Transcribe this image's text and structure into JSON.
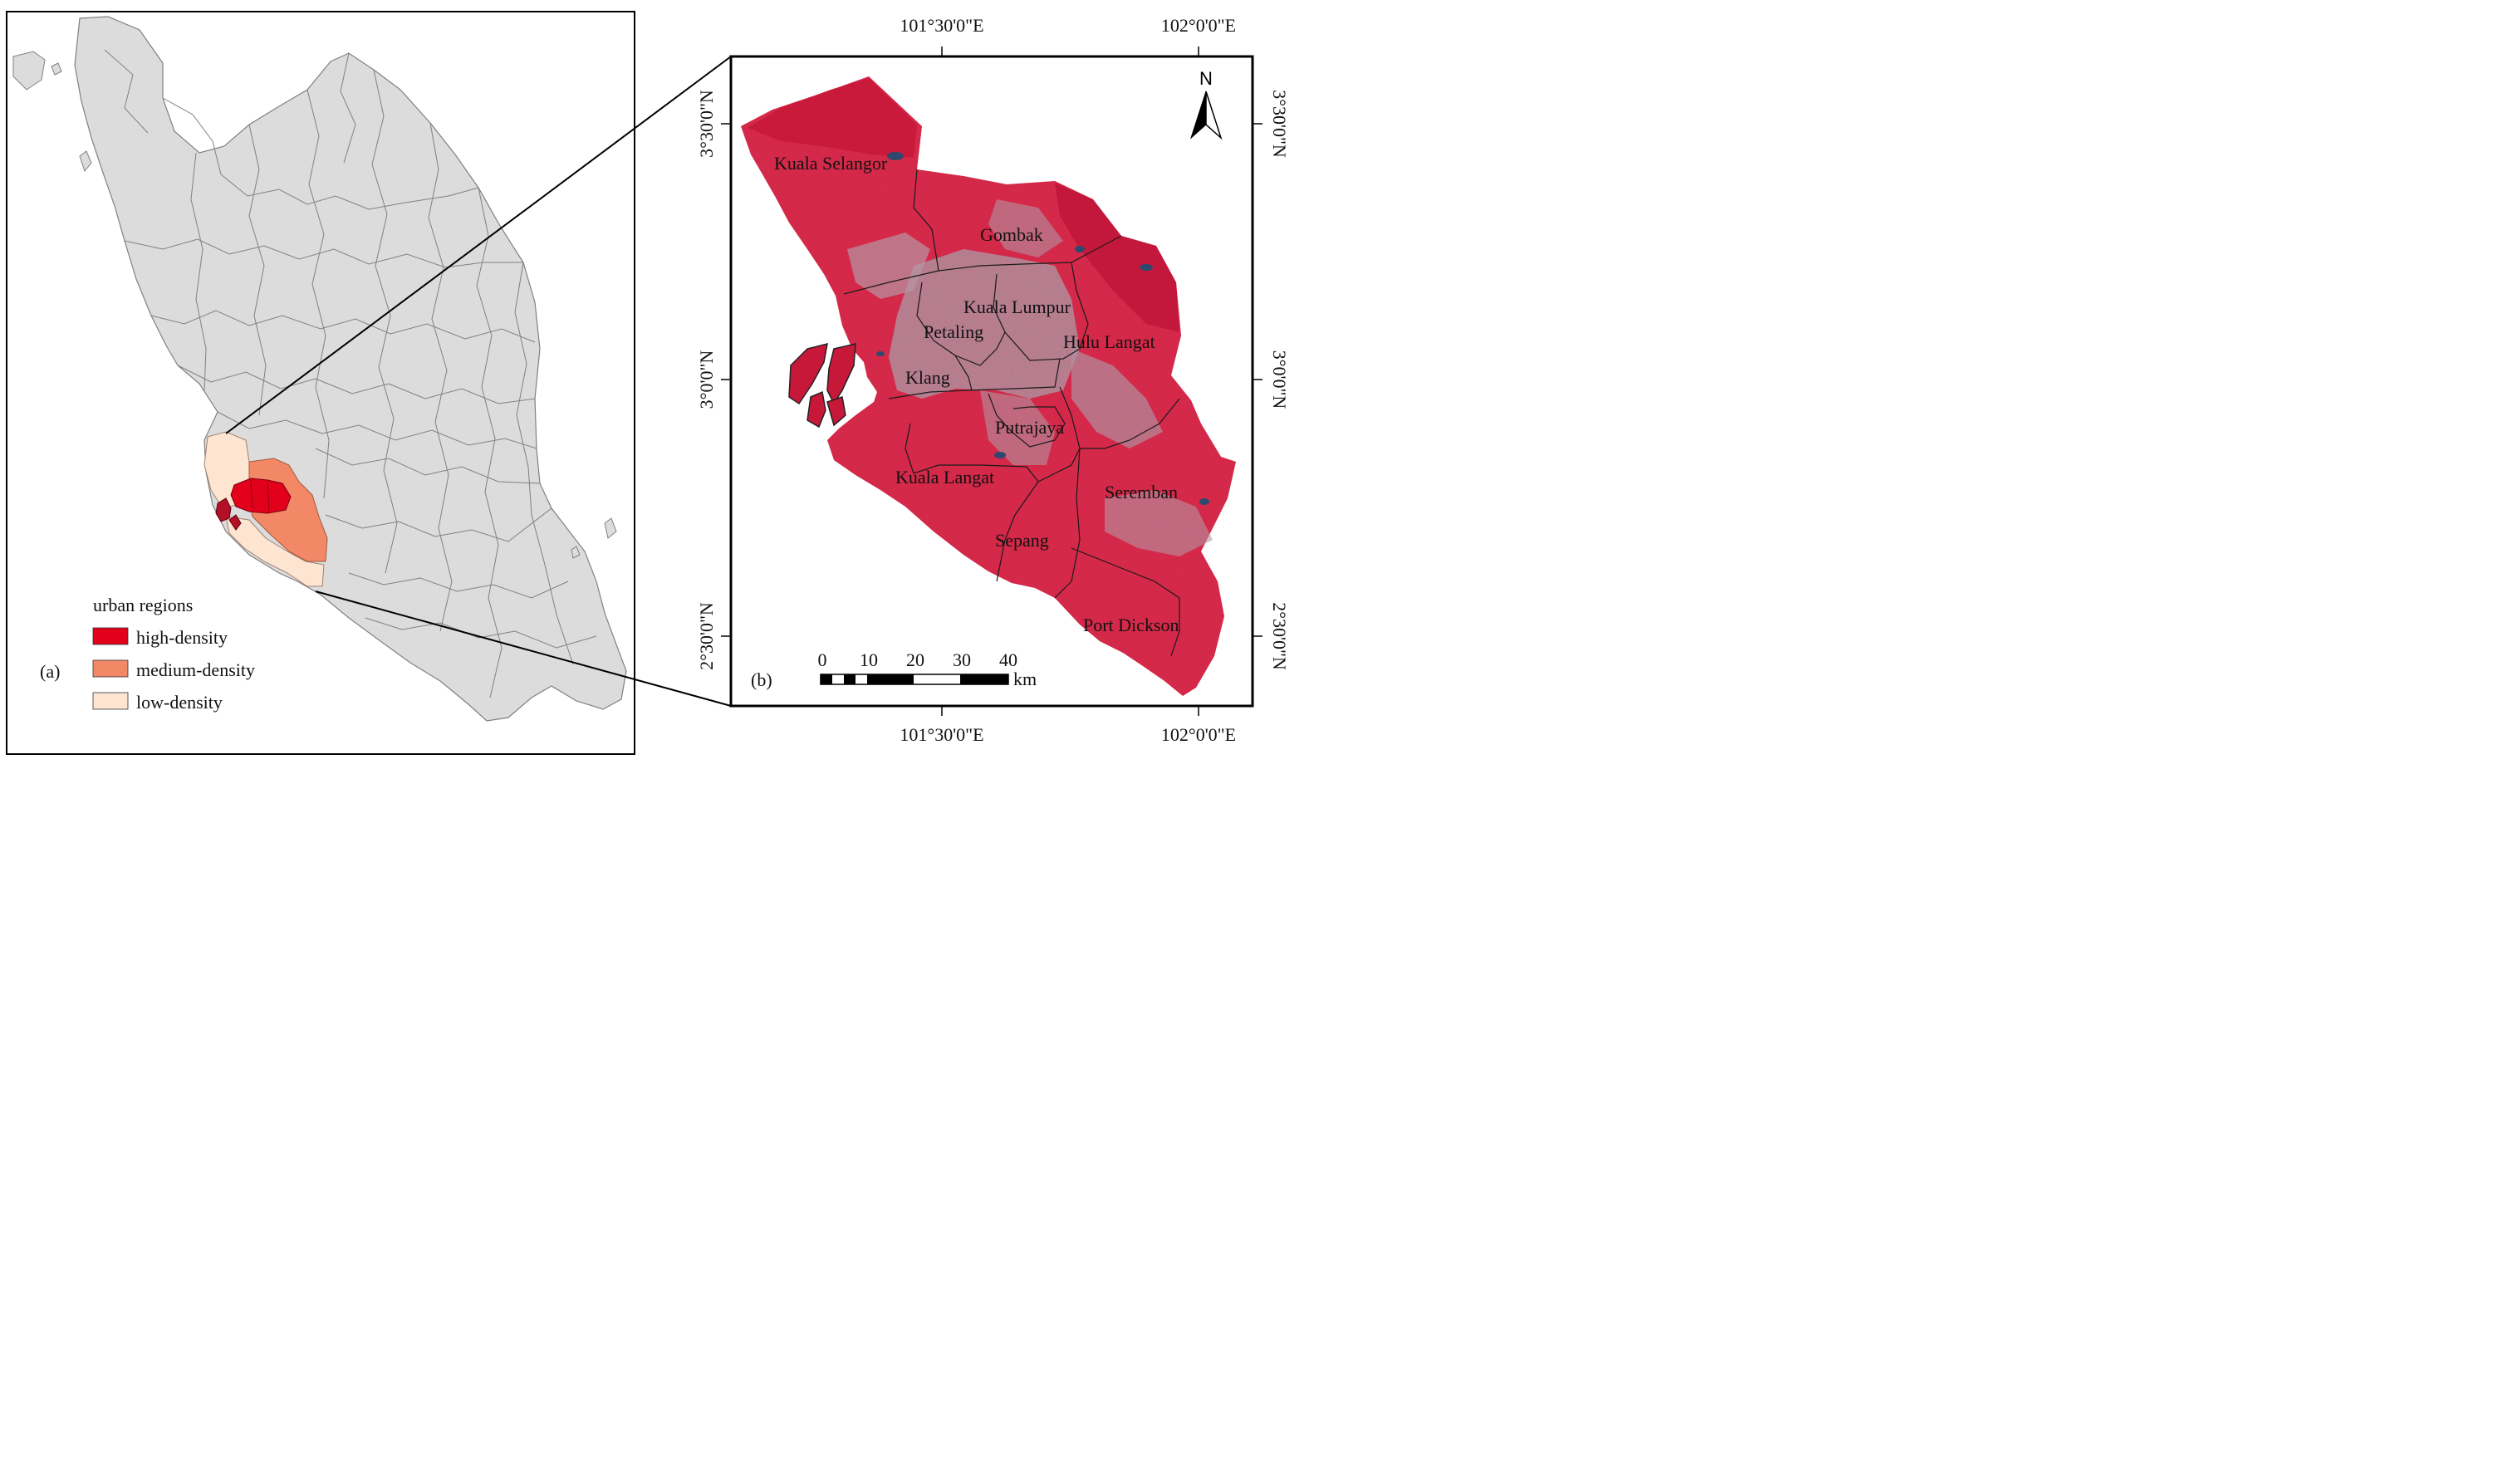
{
  "panel_a": {
    "label": "(a)",
    "legend": {
      "title": "urban regions",
      "items": [
        {
          "label": "high-density",
          "color": "#e3001b"
        },
        {
          "label": "medium-density",
          "color": "#f28866"
        },
        {
          "label": "low-density",
          "color": "#fde5d2"
        }
      ]
    },
    "colors": {
      "land": "#dcdcdc",
      "border": "#8a8a8a"
    }
  },
  "panel_b": {
    "label": "(b)",
    "north_arrow": "N",
    "scale_bar": {
      "ticks": [
        "0",
        "10",
        "20",
        "30",
        "40"
      ],
      "unit": "km"
    },
    "graticule": {
      "top": [
        "101°30'0\"E",
        "102°0'0\"E"
      ],
      "bottom": [
        "101°30'0\"E",
        "102°0'0\"E"
      ],
      "left": [
        "3°30'0\"N",
        "3°0'0\"N",
        "2°30'0\"N"
      ],
      "right": [
        "3°30'0\"N",
        "3°0'0\"N",
        "2°30'0\"N"
      ]
    },
    "districts": [
      "Kuala Selangor",
      "Gombak",
      "Kuala Lumpur",
      "Petaling",
      "Hulu Langat",
      "Klang",
      "Putrajaya",
      "Kuala Langat",
      "Seremban",
      "Sepang",
      "Port Dickson"
    ],
    "colors": {
      "imagery": "#d9223f",
      "urban": "#a58d98",
      "dark": "#b5122d"
    }
  }
}
